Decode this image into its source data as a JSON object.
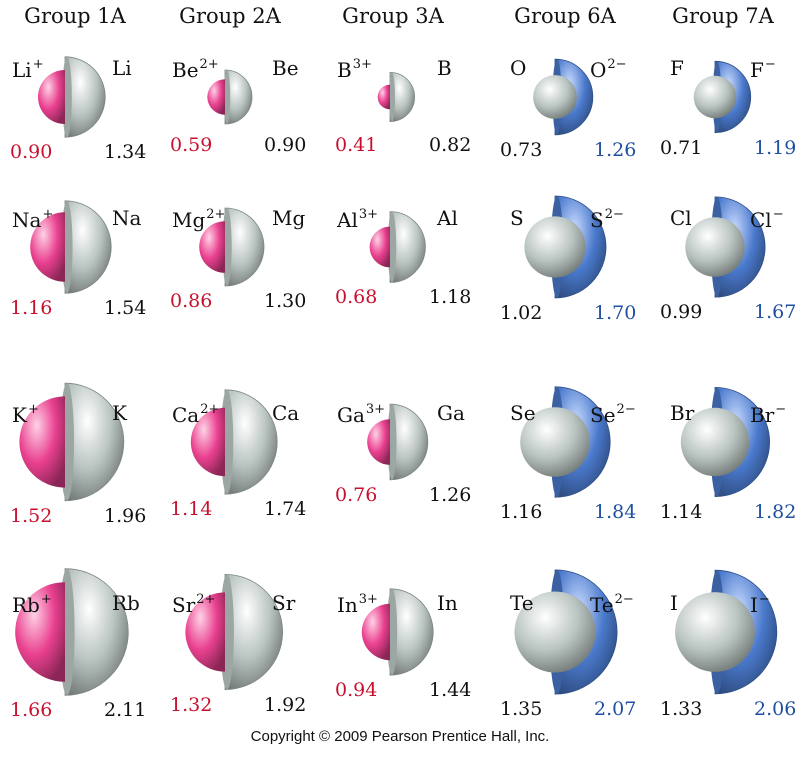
{
  "groups": [
    "Group 1A",
    "Group 2A",
    "Group 3A",
    "Group 6A",
    "Group 7A"
  ],
  "colors": {
    "cation": "#e9408f",
    "anion": "#4a79cc",
    "atom": "#b8c3c0",
    "cation_text": "#c8102e",
    "anion_text": "#1f4fa0"
  },
  "columns": [
    {
      "kind": "cation",
      "rows": [
        {
          "ion": {
            "symbol": "Li",
            "charge": "+",
            "radius": "0.90"
          },
          "atom": {
            "symbol": "Li",
            "radius": "1.34"
          }
        },
        {
          "ion": {
            "symbol": "Na",
            "charge": "+",
            "radius": "1.16"
          },
          "atom": {
            "symbol": "Na",
            "radius": "1.54"
          }
        },
        {
          "ion": {
            "symbol": "K",
            "charge": "+",
            "radius": "1.52"
          },
          "atom": {
            "symbol": "K",
            "radius": "1.96"
          }
        },
        {
          "ion": {
            "symbol": "Rb",
            "charge": "+",
            "radius": "1.66"
          },
          "atom": {
            "symbol": "Rb",
            "radius": "2.11"
          }
        }
      ]
    },
    {
      "kind": "cation",
      "rows": [
        {
          "ion": {
            "symbol": "Be",
            "charge": "2+",
            "radius": "0.59"
          },
          "atom": {
            "symbol": "Be",
            "radius": "0.90"
          }
        },
        {
          "ion": {
            "symbol": "Mg",
            "charge": "2+",
            "radius": "0.86"
          },
          "atom": {
            "symbol": "Mg",
            "radius": "1.30"
          }
        },
        {
          "ion": {
            "symbol": "Ca",
            "charge": "2+",
            "radius": "1.14"
          },
          "atom": {
            "symbol": "Ca",
            "radius": "1.74"
          }
        },
        {
          "ion": {
            "symbol": "Sr",
            "charge": "2+",
            "radius": "1.32"
          },
          "atom": {
            "symbol": "Sr",
            "radius": "1.92"
          }
        }
      ]
    },
    {
      "kind": "cation",
      "rows": [
        {
          "ion": {
            "symbol": "B",
            "charge": "3+",
            "radius": "0.41"
          },
          "atom": {
            "symbol": "B",
            "radius": "0.82"
          }
        },
        {
          "ion": {
            "symbol": "Al",
            "charge": "3+",
            "radius": "0.68"
          },
          "atom": {
            "symbol": "Al",
            "radius": "1.18"
          }
        },
        {
          "ion": {
            "symbol": "Ga",
            "charge": "3+",
            "radius": "0.76"
          },
          "atom": {
            "symbol": "Ga",
            "radius": "1.26"
          }
        },
        {
          "ion": {
            "symbol": "In",
            "charge": "3+",
            "radius": "0.94"
          },
          "atom": {
            "symbol": "In",
            "radius": "1.44"
          }
        }
      ]
    },
    {
      "kind": "anion",
      "rows": [
        {
          "atom": {
            "symbol": "O",
            "radius": "0.73"
          },
          "ion": {
            "symbol": "O",
            "charge": "2−",
            "radius": "1.26"
          }
        },
        {
          "atom": {
            "symbol": "S",
            "radius": "1.02"
          },
          "ion": {
            "symbol": "S",
            "charge": "2−",
            "radius": "1.70"
          }
        },
        {
          "atom": {
            "symbol": "Se",
            "radius": "1.16"
          },
          "ion": {
            "symbol": "Se",
            "charge": "2−",
            "radius": "1.84"
          }
        },
        {
          "atom": {
            "symbol": "Te",
            "radius": "1.35"
          },
          "ion": {
            "symbol": "Te",
            "charge": "2−",
            "radius": "2.07"
          }
        }
      ]
    },
    {
      "kind": "anion",
      "rows": [
        {
          "atom": {
            "symbol": "F",
            "radius": "0.71"
          },
          "ion": {
            "symbol": "F",
            "charge": "−",
            "radius": "1.19"
          }
        },
        {
          "atom": {
            "symbol": "Cl",
            "radius": "0.99"
          },
          "ion": {
            "symbol": "Cl",
            "charge": "−",
            "radius": "1.67"
          }
        },
        {
          "atom": {
            "symbol": "Br",
            "radius": "1.14"
          },
          "ion": {
            "symbol": "Br",
            "charge": "−",
            "radius": "1.82"
          }
        },
        {
          "atom": {
            "symbol": "I",
            "radius": "1.33"
          },
          "ion": {
            "symbol": "I",
            "charge": "−",
            "radius": "2.06"
          }
        }
      ]
    }
  ],
  "copyright": "Copyright © 2009 Pearson Prentice Hall, Inc."
}
